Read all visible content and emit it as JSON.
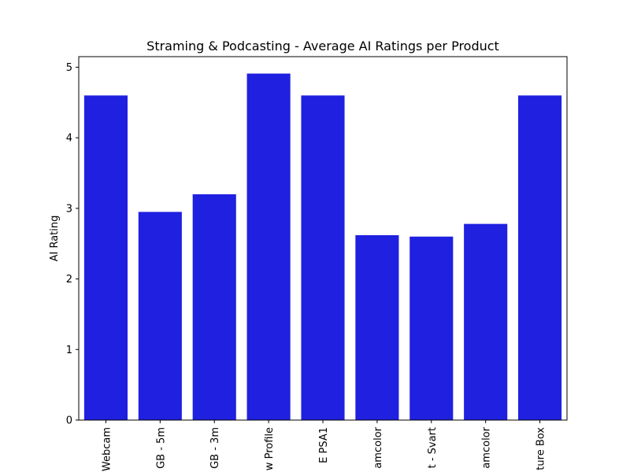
{
  "chart_data": {
    "type": "bar",
    "title": "Straming & Podcasting - Average AI Ratings per Product",
    "xlabel": "",
    "ylabel": "AI Rating",
    "categories": [
      "Webcam",
      "GB - 5m",
      "GB - 3m",
      "w Profile",
      "E  PSA1",
      "amcolor",
      "t - Svart",
      "amcolor",
      "ture Box"
    ],
    "values": [
      4.6,
      2.95,
      3.2,
      4.91,
      4.6,
      2.62,
      2.6,
      2.78,
      4.6
    ],
    "ylim": [
      0,
      5.15
    ],
    "yticks": [
      "0",
      "1",
      "2",
      "3",
      "4",
      "5"
    ],
    "bar_color": "#2020e0",
    "grid": false,
    "legend": "none"
  }
}
